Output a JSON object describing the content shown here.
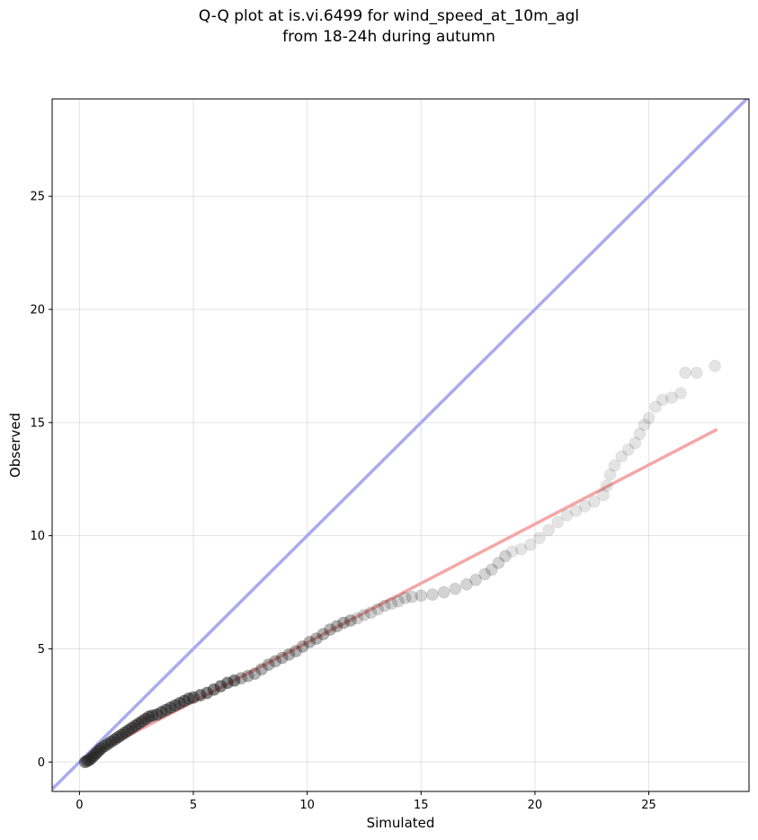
{
  "chart_data": {
    "type": "scatter",
    "title": "Q-Q plot at is.vi.6499 for wind_speed_at_10m_agl",
    "subtitle": "from 18-24h during autumn",
    "xlabel": "Simulated",
    "ylabel": "Observed",
    "xlim": [
      -1.2,
      29.4
    ],
    "ylim": [
      -1.3,
      29.3
    ],
    "xticks": [
      0,
      5,
      10,
      15,
      20,
      25
    ],
    "yticks": [
      0,
      5,
      10,
      15,
      20,
      25
    ],
    "grid": true,
    "identity_line": {
      "color": "#aaaaee"
    },
    "fit_line": {
      "x": [
        0.2,
        28.0
      ],
      "y": [
        0.15,
        14.7
      ],
      "color": "#f4a7a7"
    },
    "points": [
      [
        0.25,
        0.0
      ],
      [
        0.35,
        0.05
      ],
      [
        0.45,
        0.1
      ],
      [
        0.55,
        0.2
      ],
      [
        0.65,
        0.3
      ],
      [
        0.75,
        0.4
      ],
      [
        0.85,
        0.5
      ],
      [
        0.95,
        0.6
      ],
      [
        1.1,
        0.7
      ],
      [
        1.25,
        0.8
      ],
      [
        1.4,
        0.9
      ],
      [
        1.55,
        1.0
      ],
      [
        1.7,
        1.1
      ],
      [
        1.85,
        1.2
      ],
      [
        2.0,
        1.3
      ],
      [
        2.15,
        1.4
      ],
      [
        2.3,
        1.5
      ],
      [
        2.45,
        1.6
      ],
      [
        2.6,
        1.7
      ],
      [
        2.75,
        1.8
      ],
      [
        2.9,
        1.9
      ],
      [
        3.05,
        2.0
      ],
      [
        3.2,
        2.05
      ],
      [
        3.4,
        2.1
      ],
      [
        3.6,
        2.2
      ],
      [
        3.8,
        2.3
      ],
      [
        4.0,
        2.4
      ],
      [
        4.2,
        2.5
      ],
      [
        4.4,
        2.6
      ],
      [
        4.6,
        2.7
      ],
      [
        4.8,
        2.8
      ],
      [
        5.0,
        2.85
      ],
      [
        5.3,
        2.95
      ],
      [
        5.6,
        3.05
      ],
      [
        5.9,
        3.2
      ],
      [
        6.2,
        3.35
      ],
      [
        6.5,
        3.5
      ],
      [
        6.8,
        3.6
      ],
      [
        7.1,
        3.7
      ],
      [
        7.4,
        3.8
      ],
      [
        7.7,
        3.9
      ],
      [
        8.0,
        4.1
      ],
      [
        8.3,
        4.3
      ],
      [
        8.6,
        4.45
      ],
      [
        8.9,
        4.6
      ],
      [
        9.2,
        4.75
      ],
      [
        9.5,
        4.9
      ],
      [
        9.8,
        5.1
      ],
      [
        10.1,
        5.3
      ],
      [
        10.4,
        5.45
      ],
      [
        10.7,
        5.65
      ],
      [
        11.0,
        5.85
      ],
      [
        11.3,
        6.0
      ],
      [
        11.6,
        6.15
      ],
      [
        11.9,
        6.25
      ],
      [
        12.2,
        6.35
      ],
      [
        12.5,
        6.5
      ],
      [
        12.8,
        6.6
      ],
      [
        13.1,
        6.75
      ],
      [
        13.4,
        6.9
      ],
      [
        13.7,
        7.0
      ],
      [
        14.0,
        7.1
      ],
      [
        14.3,
        7.25
      ],
      [
        14.6,
        7.3
      ],
      [
        15.0,
        7.35
      ],
      [
        15.5,
        7.4
      ],
      [
        16.0,
        7.5
      ],
      [
        16.5,
        7.65
      ],
      [
        17.0,
        7.85
      ],
      [
        17.4,
        8.05
      ],
      [
        17.8,
        8.3
      ],
      [
        18.1,
        8.5
      ],
      [
        18.4,
        8.8
      ],
      [
        18.7,
        9.1
      ],
      [
        19.0,
        9.3
      ],
      [
        19.4,
        9.4
      ],
      [
        19.8,
        9.6
      ],
      [
        20.2,
        9.9
      ],
      [
        20.6,
        10.25
      ],
      [
        21.0,
        10.6
      ],
      [
        21.4,
        10.9
      ],
      [
        21.8,
        11.1
      ],
      [
        22.2,
        11.3
      ],
      [
        22.6,
        11.5
      ],
      [
        23.0,
        11.8
      ],
      [
        23.15,
        12.2
      ],
      [
        23.3,
        12.7
      ],
      [
        23.5,
        13.1
      ],
      [
        23.8,
        13.5
      ],
      [
        24.1,
        13.8
      ],
      [
        24.4,
        14.1
      ],
      [
        24.6,
        14.5
      ],
      [
        24.8,
        14.9
      ],
      [
        25.0,
        15.2
      ],
      [
        25.3,
        15.7
      ],
      [
        25.6,
        16.0
      ],
      [
        26.0,
        16.1
      ],
      [
        26.4,
        16.3
      ],
      [
        26.6,
        17.2
      ],
      [
        27.1,
        17.2
      ],
      [
        27.9,
        17.5
      ]
    ]
  }
}
